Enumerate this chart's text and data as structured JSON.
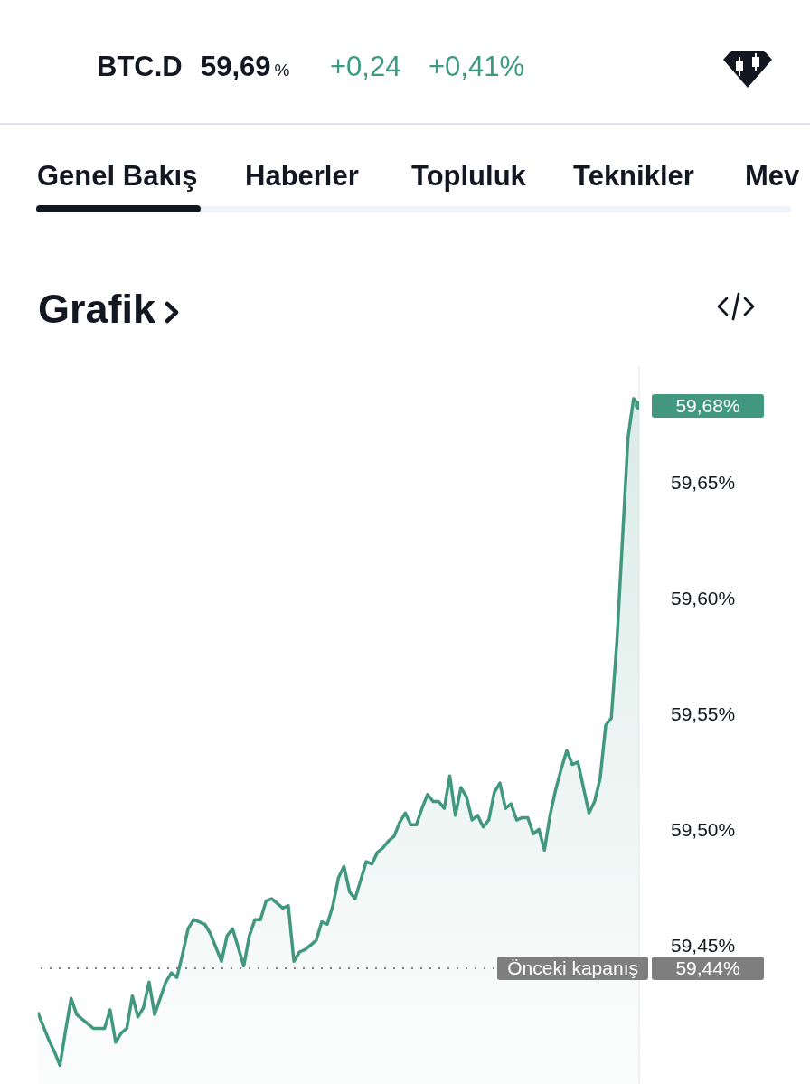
{
  "chart_data": {
    "type": "area",
    "title": "Grafik",
    "annotations": [
      "BTC.D",
      "59,69%",
      "+0,24",
      "+0,41%",
      "Genel Bakış",
      "Haberler",
      "Topluluk",
      "Teknikler",
      "Mev",
      "59,68%",
      "59,44%"
    ],
    "categories": [
      null,
      null,
      null,
      null,
      null,
      null,
      null,
      null,
      null,
      null,
      null,
      null,
      null,
      null,
      null,
      null,
      null,
      null,
      null,
      null,
      null,
      null,
      null,
      null,
      null,
      null,
      null,
      null,
      null,
      null,
      null,
      null,
      null,
      null,
      null,
      null,
      null,
      null,
      null,
      null,
      null,
      null,
      null,
      null,
      null,
      null,
      null,
      null,
      null,
      null,
      null,
      null,
      null,
      null,
      null,
      null,
      null,
      null,
      null,
      null,
      null,
      null,
      null,
      null,
      null,
      null,
      null,
      null,
      null,
      null,
      null,
      null,
      null,
      null,
      null,
      null,
      null,
      null,
      null,
      null,
      null,
      null,
      null,
      null,
      null,
      null,
      null,
      null,
      null,
      null,
      null,
      null,
      null,
      null,
      null,
      null,
      null,
      null,
      null,
      null,
      null,
      null,
      null,
      null,
      null,
      null,
      null,
      null,
      null
    ],
    "values": [
      59.421,
      59.415,
      59.409,
      59.404,
      59.398,
      59.413,
      59.427,
      59.42,
      59.418,
      59.416,
      59.414,
      59.414,
      59.414,
      59.422,
      59.408,
      59.412,
      59.414,
      59.428,
      59.419,
      59.423,
      59.434,
      59.42,
      59.427,
      59.434,
      59.438,
      59.436,
      59.446,
      59.457,
      59.461,
      59.46,
      59.459,
      59.455,
      59.449,
      59.443,
      59.454,
      59.457,
      59.449,
      59.441,
      59.454,
      59.461,
      59.461,
      59.469,
      59.47,
      59.468,
      59.466,
      59.467,
      59.443,
      59.447,
      59.448,
      59.45,
      59.452,
      59.46,
      59.459,
      59.467,
      59.479,
      59.484,
      59.473,
      59.47,
      59.478,
      59.486,
      59.485,
      59.49,
      59.492,
      59.495,
      59.497,
      59.503,
      59.507,
      59.502,
      59.502,
      59.509,
      59.515,
      59.512,
      59.512,
      59.509,
      59.523,
      59.506,
      59.518,
      59.514,
      59.504,
      59.506,
      59.501,
      59.504,
      59.516,
      59.52,
      59.509,
      59.511,
      59.504,
      59.505,
      59.505,
      59.498,
      59.5,
      59.491,
      59.506,
      59.517,
      59.526,
      59.534,
      59.528,
      59.529,
      59.518,
      59.507,
      59.512,
      59.522,
      59.545,
      59.548,
      59.581,
      59.625,
      59.669,
      59.686,
      59.683
    ],
    "color": "#42977f",
    "ylim": [
      59.39,
      59.7
    ],
    "yticks": [
      {
        "value": 59.45,
        "label": "59,45%"
      },
      {
        "value": 59.5,
        "label": "59,50%"
      },
      {
        "value": 59.55,
        "label": "59,55%"
      },
      {
        "value": 59.6,
        "label": "59,60%"
      },
      {
        "value": 59.65,
        "label": "59,65%"
      }
    ],
    "ref_lines": [
      {
        "axis": "y",
        "value": 59.44,
        "label": "Önceki kapanış",
        "color": "#7e7e7e",
        "line_style": "dotted"
      }
    ],
    "tick_labels": "y"
  }
}
